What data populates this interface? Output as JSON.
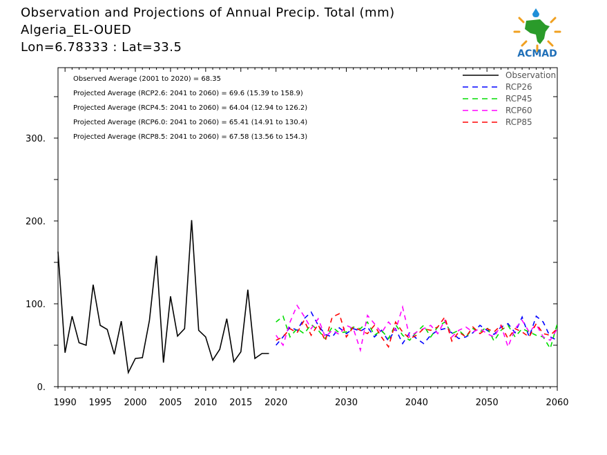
{
  "title": {
    "line1": "Observation and Projections of Annual Precip. Total (mm)",
    "line2": "Algeria_EL-OUED",
    "line3": "Lon=6.78333 : Lat=33.5"
  },
  "logo": {
    "text": "ACMAD",
    "icon": "africa-map-logo"
  },
  "annotations": [
    "Observed Average (2001 to 2020) = 68.35",
    "Projected Average (RCP2.6: 2041 to 2060) = 69.6 (15.39 to 158.9)",
    "Projected Average (RCP4.5: 2041 to 2060) = 64.04 (12.94 to 126.2)",
    "Projected Average (RCP6.0: 2041 to 2060) = 65.41 (14.91 to 130.4)",
    "Projected Average (RCP8.5: 2041 to 2060) = 67.58 (13.56 to 154.3)"
  ],
  "colors": {
    "Observation": "#000000",
    "RCP26": "#0000ff",
    "RCP45": "#00dd00",
    "RCP60": "#ff00ff",
    "RCP85": "#ff0000"
  },
  "chart_data": {
    "type": "line",
    "xlim": [
      1989,
      2060
    ],
    "ylim": [
      0,
      385
    ],
    "x_ticks": [
      "1990",
      "1995",
      "2000",
      "2005",
      "2010",
      "2015",
      "2020",
      "2030",
      "2040",
      "2050",
      "2060"
    ],
    "y_ticks": [
      "0.",
      "100.",
      "200.",
      "300."
    ],
    "legend_position": "top-right",
    "series": [
      {
        "name": "Observation",
        "style": "solid",
        "x": [
          1989,
          1990,
          1991,
          1992,
          1993,
          1994,
          1995,
          1996,
          1997,
          1998,
          1999,
          2000,
          2001,
          2002,
          2003,
          2004,
          2005,
          2006,
          2007,
          2008,
          2009,
          2010,
          2011,
          2012,
          2013,
          2014,
          2015,
          2016,
          2017,
          2018,
          2019
        ],
        "values": [
          163,
          41,
          85,
          53,
          50,
          123,
          74,
          69,
          39,
          79,
          17,
          34,
          35,
          80,
          158,
          29,
          109,
          61,
          70,
          201,
          68,
          60,
          32,
          45,
          82,
          30,
          42,
          117,
          34,
          40,
          40
        ]
      },
      {
        "name": "RCP26",
        "style": "dashed",
        "x": [
          2020,
          2021,
          2022,
          2023,
          2024,
          2025,
          2026,
          2027,
          2028,
          2029,
          2030,
          2031,
          2032,
          2033,
          2034,
          2035,
          2036,
          2037,
          2038,
          2039,
          2040,
          2041,
          2042,
          2043,
          2044,
          2045,
          2046,
          2047,
          2048,
          2049,
          2050,
          2051,
          2052,
          2053,
          2054,
          2055,
          2056,
          2057,
          2058,
          2059,
          2060
        ],
        "values": [
          50,
          60,
          72,
          68,
          82,
          90,
          74,
          63,
          60,
          71,
          64,
          70,
          67,
          72,
          60,
          68,
          55,
          70,
          52,
          65,
          58,
          52,
          62,
          68,
          70,
          65,
          58,
          60,
          65,
          74,
          68,
          63,
          72,
          76,
          65,
          84,
          60,
          85,
          78,
          60,
          56
        ]
      },
      {
        "name": "RCP45",
        "style": "dashed",
        "x": [
          2020,
          2021,
          2022,
          2023,
          2024,
          2025,
          2026,
          2027,
          2028,
          2029,
          2030,
          2031,
          2032,
          2033,
          2034,
          2035,
          2036,
          2037,
          2038,
          2039,
          2040,
          2041,
          2042,
          2043,
          2044,
          2045,
          2046,
          2047,
          2048,
          2049,
          2050,
          2051,
          2052,
          2053,
          2054,
          2055,
          2056,
          2057,
          2058,
          2059,
          2060
        ],
        "values": [
          78,
          85,
          60,
          70,
          64,
          75,
          68,
          58,
          72,
          65,
          66,
          72,
          70,
          78,
          62,
          68,
          58,
          75,
          62,
          56,
          66,
          74,
          60,
          72,
          78,
          64,
          68,
          60,
          70,
          66,
          72,
          55,
          68,
          74,
          60,
          70,
          66,
          62,
          60,
          46,
          76
        ]
      },
      {
        "name": "RCP60",
        "style": "dashed",
        "x": [
          2020,
          2021,
          2022,
          2023,
          2024,
          2025,
          2026,
          2027,
          2028,
          2029,
          2030,
          2031,
          2032,
          2033,
          2034,
          2035,
          2036,
          2037,
          2038,
          2039,
          2040,
          2041,
          2042,
          2043,
          2044,
          2045,
          2046,
          2047,
          2048,
          2049,
          2050,
          2051,
          2052,
          2053,
          2054,
          2055,
          2056,
          2057,
          2058,
          2059,
          2060
        ],
        "values": [
          62,
          50,
          78,
          98,
          85,
          70,
          82,
          60,
          68,
          63,
          74,
          70,
          44,
          86,
          76,
          65,
          78,
          68,
          96,
          60,
          66,
          70,
          74,
          64,
          80,
          60,
          68,
          72,
          66,
          70,
          64,
          60,
          74,
          48,
          70,
          80,
          66,
          75,
          60,
          56,
          70
        ]
      },
      {
        "name": "RCP85",
        "style": "dashed",
        "x": [
          2020,
          2021,
          2022,
          2023,
          2024,
          2025,
          2026,
          2027,
          2028,
          2029,
          2030,
          2031,
          2032,
          2033,
          2034,
          2035,
          2036,
          2037,
          2038,
          2039,
          2040,
          2041,
          2042,
          2043,
          2044,
          2045,
          2046,
          2047,
          2048,
          2049,
          2050,
          2051,
          2052,
          2053,
          2054,
          2055,
          2056,
          2057,
          2058,
          2059,
          2060
        ],
        "values": [
          56,
          60,
          70,
          65,
          80,
          62,
          75,
          55,
          84,
          88,
          60,
          72,
          68,
          64,
          74,
          60,
          48,
          78,
          66,
          58,
          62,
          70,
          68,
          72,
          84,
          55,
          66,
          60,
          72,
          64,
          70,
          66,
          74,
          58,
          70,
          66,
          60,
          76,
          64,
          62,
          70
        ]
      }
    ]
  }
}
